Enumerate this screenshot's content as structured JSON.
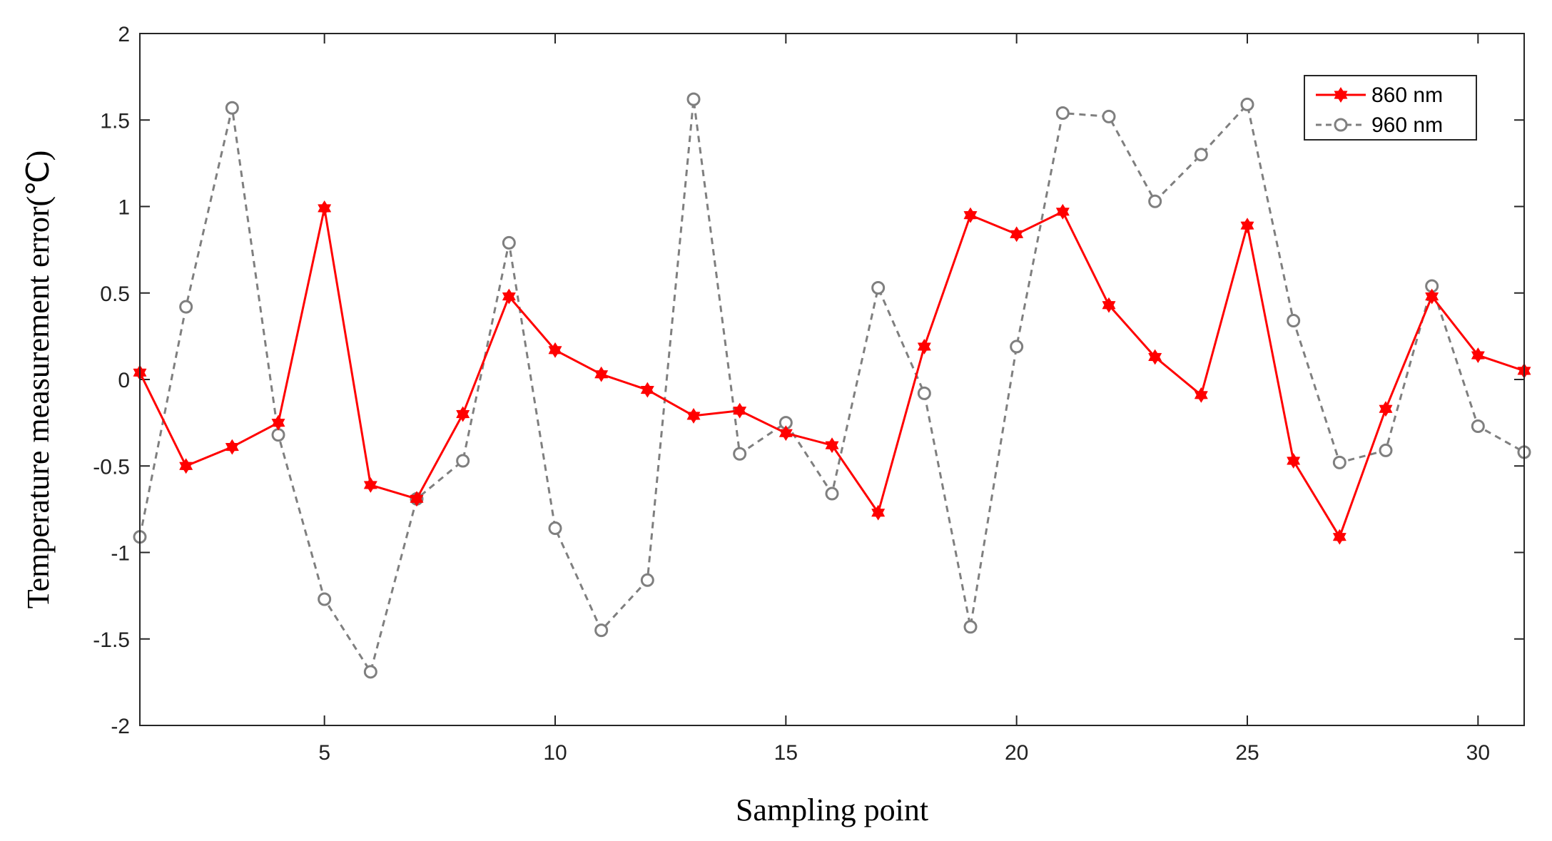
{
  "chart_data": {
    "type": "line",
    "title": "",
    "xlabel": "Sampling point",
    "ylabel": "Temperature measurement error(℃)",
    "xlim": [
      1,
      31
    ],
    "ylim": [
      -2,
      2
    ],
    "x_ticks": [
      5,
      10,
      15,
      20,
      25,
      30
    ],
    "x_tick_labels": [
      "5",
      "10",
      "15",
      "20",
      "25",
      "30"
    ],
    "y_ticks": [
      -2,
      -1.5,
      -1,
      -0.5,
      0,
      0.5,
      1,
      1.5,
      2
    ],
    "y_tick_labels": [
      "-2",
      "-1.5",
      "-1",
      "-0.5",
      "0",
      "0.5",
      "1",
      "1.5",
      "2"
    ],
    "grid": false,
    "legend_position": "top-right",
    "x": [
      1,
      2,
      3,
      4,
      5,
      6,
      7,
      8,
      9,
      10,
      11,
      12,
      13,
      14,
      15,
      16,
      17,
      18,
      19,
      20,
      21,
      22,
      23,
      24,
      25,
      26,
      27,
      28,
      29,
      30,
      31
    ],
    "series": [
      {
        "name": "860 nm",
        "color": "#ff0000",
        "line_style": "solid",
        "marker": "hexagram",
        "values": [
          0.04,
          -0.5,
          -0.39,
          -0.25,
          0.99,
          -0.61,
          -0.69,
          -0.2,
          0.48,
          0.17,
          0.03,
          -0.06,
          -0.21,
          -0.18,
          -0.31,
          -0.38,
          -0.77,
          0.19,
          0.95,
          0.84,
          0.97,
          0.43,
          0.13,
          -0.09,
          0.89,
          -0.47,
          -0.91,
          -0.17,
          0.48,
          0.14,
          0.05
        ]
      },
      {
        "name": "960 nm",
        "color": "#7f7f7f",
        "line_style": "dashed",
        "marker": "circle",
        "values": [
          -0.91,
          0.42,
          1.57,
          -0.32,
          -1.27,
          -1.69,
          -0.69,
          -0.47,
          0.79,
          -0.86,
          -1.45,
          -1.16,
          1.62,
          -0.43,
          -0.25,
          -0.66,
          0.53,
          -0.08,
          -1.43,
          0.19,
          1.54,
          1.52,
          1.03,
          1.3,
          1.59,
          0.34,
          -0.48,
          -0.41,
          0.54,
          -0.27,
          -0.42
        ]
      }
    ]
  }
}
